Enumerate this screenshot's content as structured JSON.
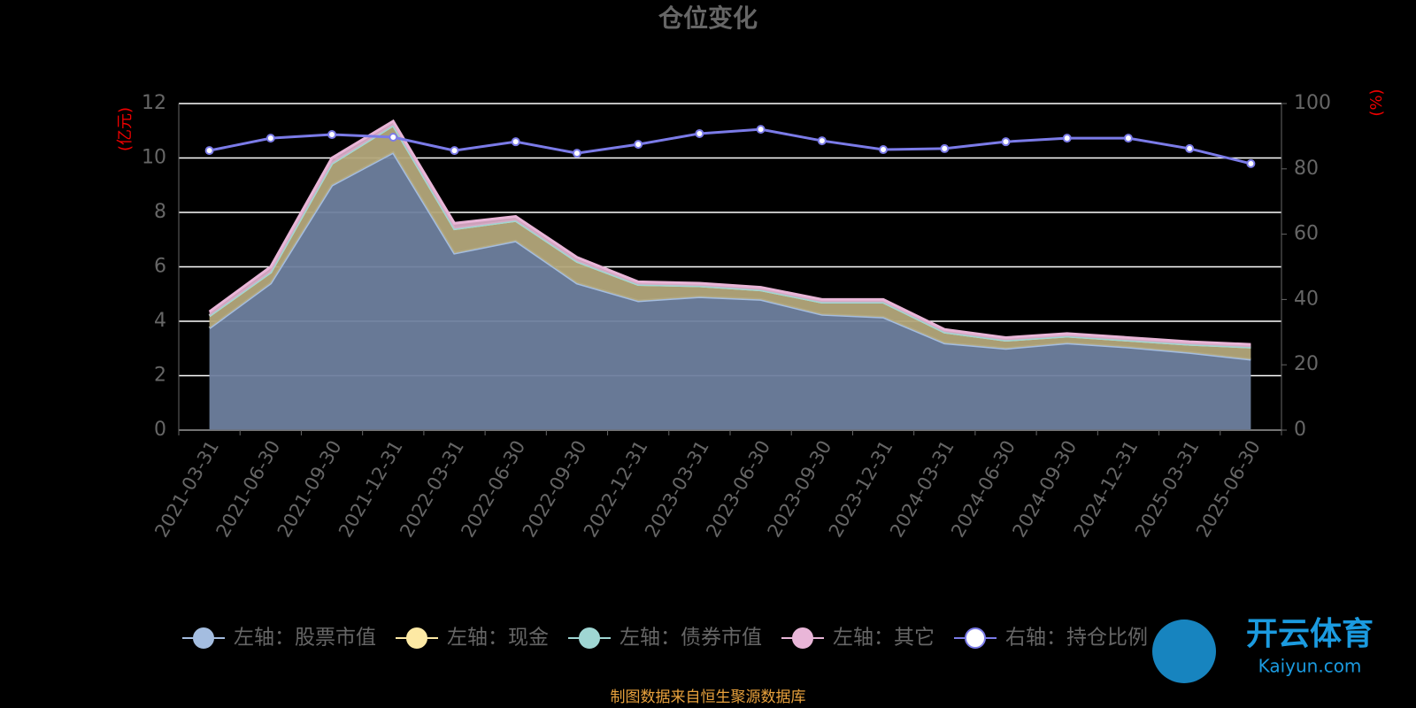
{
  "chart_data": {
    "type": "stacked-area",
    "title": "仓位变化",
    "y_label": "(亿元)",
    "y2_label": "(%)",
    "source": "制图数据来自恒生聚源数据库",
    "watermark": [
      "开云体育",
      "Kaiyun.com"
    ],
    "categories": [
      "2021-03-31",
      "2021-06-30",
      "2021-09-30",
      "2021-12-31",
      "2022-03-31",
      "2022-06-30",
      "2022-09-30",
      "2022-12-31",
      "2023-03-31",
      "2023-06-30",
      "2023-09-30",
      "2023-12-31",
      "2024-03-31",
      "2024-06-30",
      "2024-09-30",
      "2024-12-31",
      "2025-03-31",
      "2025-06-30"
    ],
    "ylim": [
      0,
      12
    ],
    "yticks": [
      0,
      2,
      4,
      6,
      8,
      10,
      12
    ],
    "y2lim": [
      0,
      100
    ],
    "y2ticks": [
      0,
      20,
      40,
      60,
      80,
      100
    ],
    "grid": true,
    "series": [
      {
        "name": "左轴：股票市值",
        "color": "#a4bde0",
        "fill": "#6e7f9e",
        "values": [
          3.75,
          5.4,
          9.0,
          10.2,
          6.5,
          6.95,
          5.4,
          4.75,
          4.9,
          4.8,
          4.25,
          4.15,
          3.2,
          3.0,
          3.2,
          3.05,
          2.85,
          2.6
        ]
      },
      {
        "name": "左轴：现金",
        "color": "#fde9a4",
        "fill": "#b3a77a",
        "values": [
          0.45,
          0.4,
          0.8,
          1.0,
          0.9,
          0.75,
          0.8,
          0.6,
          0.4,
          0.35,
          0.45,
          0.55,
          0.4,
          0.3,
          0.25,
          0.25,
          0.3,
          0.45
        ]
      },
      {
        "name": "左轴：债券市值",
        "color": "#9fd6d3",
        "fill": "#8fbcbc",
        "values": [
          0,
          0,
          0,
          0,
          0,
          0,
          0,
          0,
          0,
          0,
          0,
          0,
          0,
          0,
          0,
          0,
          0,
          0
        ]
      },
      {
        "name": "左轴：其它",
        "color": "#e9b6d8",
        "fill": "#d8a9c4",
        "values": [
          0.15,
          0.2,
          0.2,
          0.15,
          0.2,
          0.15,
          0.15,
          0.1,
          0.1,
          0.1,
          0.1,
          0.1,
          0.1,
          0.1,
          0.1,
          0.1,
          0.1,
          0.1
        ]
      },
      {
        "name": "右轴：持仓比例",
        "color": "#7b7be8",
        "axis": "y2",
        "values": [
          85.6,
          89.4,
          90.5,
          89.7,
          85.6,
          88.3,
          84.8,
          87.5,
          90.8,
          92.1,
          88.6,
          85.9,
          86.2,
          88.3,
          89.4,
          89.4,
          86.2,
          81.6
        ]
      }
    ]
  }
}
